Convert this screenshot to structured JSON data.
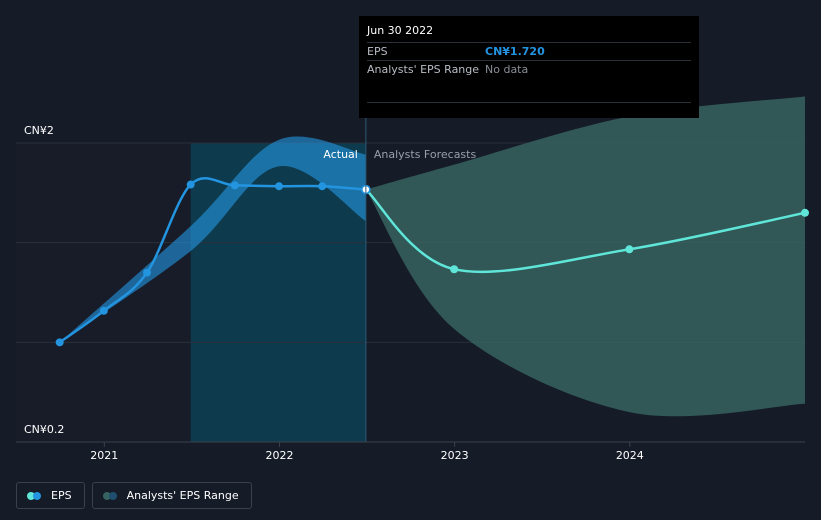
{
  "tooltip": {
    "date": "Jun 30 2022",
    "rows": [
      {
        "label": "EPS",
        "value": "CN¥1.720"
      },
      {
        "label": "Analysts' EPS Range",
        "value": "No data"
      }
    ]
  },
  "regions": {
    "actual_label": "Actual",
    "forecast_label": "Analysts Forecasts"
  },
  "legend": {
    "eps_label": "EPS",
    "range_label": "Analysts' EPS Range"
  },
  "colors": {
    "background": "#151b27",
    "eps_line": "#2394df",
    "forecast_line": "#5fe6d9",
    "past_range": "#2394df",
    "forecast_range": "#36625f",
    "highlight": "#0e3a4d"
  },
  "chart_data": {
    "type": "line",
    "x_type": "date",
    "x_range": [
      "2020-07-01",
      "2024-12-31"
    ],
    "ylim": [
      0.2,
      2
    ],
    "y_ticks": [
      {
        "value": 2,
        "label": "CN¥2"
      },
      {
        "value": 0.2,
        "label": "CN¥0.2"
      }
    ],
    "x_ticks": [
      {
        "date": "2021-01-01",
        "label": "2021"
      },
      {
        "date": "2022-01-01",
        "label": "2022"
      },
      {
        "date": "2023-01-01",
        "label": "2023"
      },
      {
        "date": "2024-01-01",
        "label": "2024"
      }
    ],
    "actual_end": "2022-06-30",
    "highlight_start": "2021-06-30",
    "grid": true,
    "legend_position": "bottom-left",
    "series": [
      {
        "name": "EPS",
        "kind": "actual",
        "points": [
          {
            "date": "2020-09-30",
            "value": 0.8
          },
          {
            "date": "2020-12-31",
            "value": 0.99
          },
          {
            "date": "2021-03-31",
            "value": 1.22
          },
          {
            "date": "2021-06-30",
            "value": 1.75
          },
          {
            "date": "2021-09-30",
            "value": 1.745
          },
          {
            "date": "2021-12-31",
            "value": 1.74
          },
          {
            "date": "2022-03-31",
            "value": 1.74
          },
          {
            "date": "2022-06-30",
            "value": 1.72
          }
        ]
      },
      {
        "name": "EPS",
        "kind": "forecast",
        "points": [
          {
            "date": "2022-06-30",
            "value": 1.72
          },
          {
            "date": "2022-12-31",
            "value": 1.24
          },
          {
            "date": "2023-12-31",
            "value": 1.36
          },
          {
            "date": "2024-12-31",
            "value": 1.58
          }
        ]
      },
      {
        "name": "Analysts' EPS Range",
        "kind": "past-range",
        "upper": [
          {
            "date": "2020-09-30",
            "value": 0.8
          },
          {
            "date": "2021-06-30",
            "value": 1.5
          },
          {
            "date": "2021-12-31",
            "value": 2.02
          },
          {
            "date": "2022-06-30",
            "value": 1.93
          }
        ],
        "lower": [
          {
            "date": "2020-09-30",
            "value": 0.8
          },
          {
            "date": "2021-06-30",
            "value": 1.35
          },
          {
            "date": "2021-12-31",
            "value": 1.86
          },
          {
            "date": "2022-06-30",
            "value": 1.53
          }
        ]
      },
      {
        "name": "Analysts' EPS Range",
        "kind": "forecast-range",
        "upper": [
          {
            "date": "2022-06-30",
            "value": 1.72
          },
          {
            "date": "2022-12-31",
            "value": 1.87
          },
          {
            "date": "2023-12-31",
            "value": 2.16
          },
          {
            "date": "2024-12-31",
            "value": 2.28
          }
        ],
        "lower": [
          {
            "date": "2022-06-30",
            "value": 1.72
          },
          {
            "date": "2022-12-31",
            "value": 0.88
          },
          {
            "date": "2023-12-31",
            "value": 0.38
          },
          {
            "date": "2024-12-31",
            "value": 0.43
          }
        ]
      }
    ]
  }
}
